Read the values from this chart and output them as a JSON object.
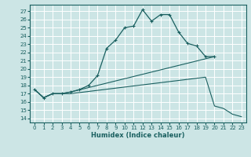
{
  "bg_color": "#cce5e5",
  "line_color": "#1a6060",
  "grid_color": "#ffffff",
  "xlabel": "Humidex (Indice chaleur)",
  "xlim": [
    -0.5,
    23.5
  ],
  "ylim": [
    13.5,
    27.8
  ],
  "yticks": [
    14,
    15,
    16,
    17,
    18,
    19,
    20,
    21,
    22,
    23,
    24,
    25,
    26,
    27
  ],
  "xticks": [
    0,
    1,
    2,
    3,
    4,
    5,
    6,
    7,
    8,
    9,
    10,
    11,
    12,
    13,
    14,
    15,
    16,
    17,
    18,
    19,
    20,
    21,
    22,
    23
  ],
  "line1_x": [
    0,
    1,
    2,
    3,
    4,
    5,
    6,
    7,
    8,
    9,
    10,
    11,
    12,
    13,
    14,
    15,
    16,
    17,
    18,
    19,
    20
  ],
  "line1_y": [
    17.5,
    16.5,
    17.0,
    17.0,
    17.2,
    17.5,
    18.0,
    19.2,
    22.5,
    23.5,
    25.0,
    25.2,
    27.2,
    25.8,
    26.6,
    26.6,
    24.5,
    23.1,
    22.8,
    21.5,
    21.5
  ],
  "line2_x": [
    0,
    1,
    2,
    3,
    4,
    20
  ],
  "line2_y": [
    17.5,
    16.5,
    17.0,
    17.0,
    17.2,
    21.5
  ],
  "line3_x": [
    0,
    1,
    2,
    3,
    4,
    19,
    20,
    21,
    22,
    23
  ],
  "line3_y": [
    17.5,
    16.5,
    17.0,
    17.0,
    17.0,
    19.0,
    15.5,
    15.2,
    14.5,
    14.2
  ]
}
